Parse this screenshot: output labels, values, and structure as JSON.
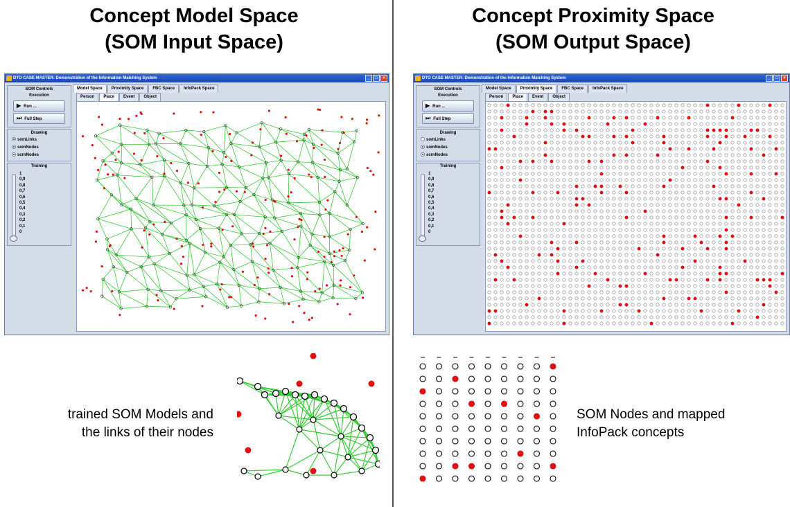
{
  "left_heading": {
    "line1": "Concept Model Space",
    "line2": "(SOM Input Space)"
  },
  "right_heading": {
    "line1": "Concept Proximity Space",
    "line2": "(SOM Output Space)"
  },
  "window": {
    "title": "DTO CASE MASTER: Demonstration of the Information Matching System",
    "main_tabs": [
      "Model Space",
      "Proximity Space",
      "FBC Space",
      "InfoPack Space"
    ],
    "sub_tabs": [
      "Person",
      "Place",
      "Event",
      "Object"
    ],
    "panel_title": "SOM Controls",
    "execution_label": "Execution",
    "run_label": "Run ...",
    "step_label": "Full Step",
    "drawing_label": "Drawing",
    "radios": [
      "somLinks",
      "somNodes",
      "scrnNodes"
    ],
    "training_label": "Training",
    "training_ticks": [
      "1",
      "0,9",
      "0,8",
      "0,7",
      "0,6",
      "0,5",
      "0,4",
      "0,3",
      "0,2",
      "0,1",
      "0"
    ]
  },
  "left_window": {
    "active_main_tab": 0,
    "active_sub_tab": 1,
    "somLinks_on": true
  },
  "right_window": {
    "active_main_tab": 1,
    "active_sub_tab": 1,
    "somLinks_on": false
  },
  "captions": {
    "left_line1": "trained SOM Models and",
    "left_line2": "the links of their nodes",
    "right_line1": "SOM Nodes and mapped",
    "right_line2": "InfoPack concepts"
  },
  "colors": {
    "links": "#33cc33",
    "mapped_concept": "#e01010",
    "node": "#000000",
    "title_bar": "#2f66d8"
  },
  "zoom_grid": {
    "rows": 10,
    "cols": 9,
    "filled": [
      [
        0,
        8
      ],
      [
        1,
        2
      ],
      [
        2,
        0
      ],
      [
        3,
        3
      ],
      [
        3,
        5
      ],
      [
        4,
        7
      ],
      [
        7,
        6
      ],
      [
        8,
        3
      ],
      [
        8,
        8
      ],
      [
        8,
        2
      ],
      [
        9,
        0
      ]
    ]
  }
}
